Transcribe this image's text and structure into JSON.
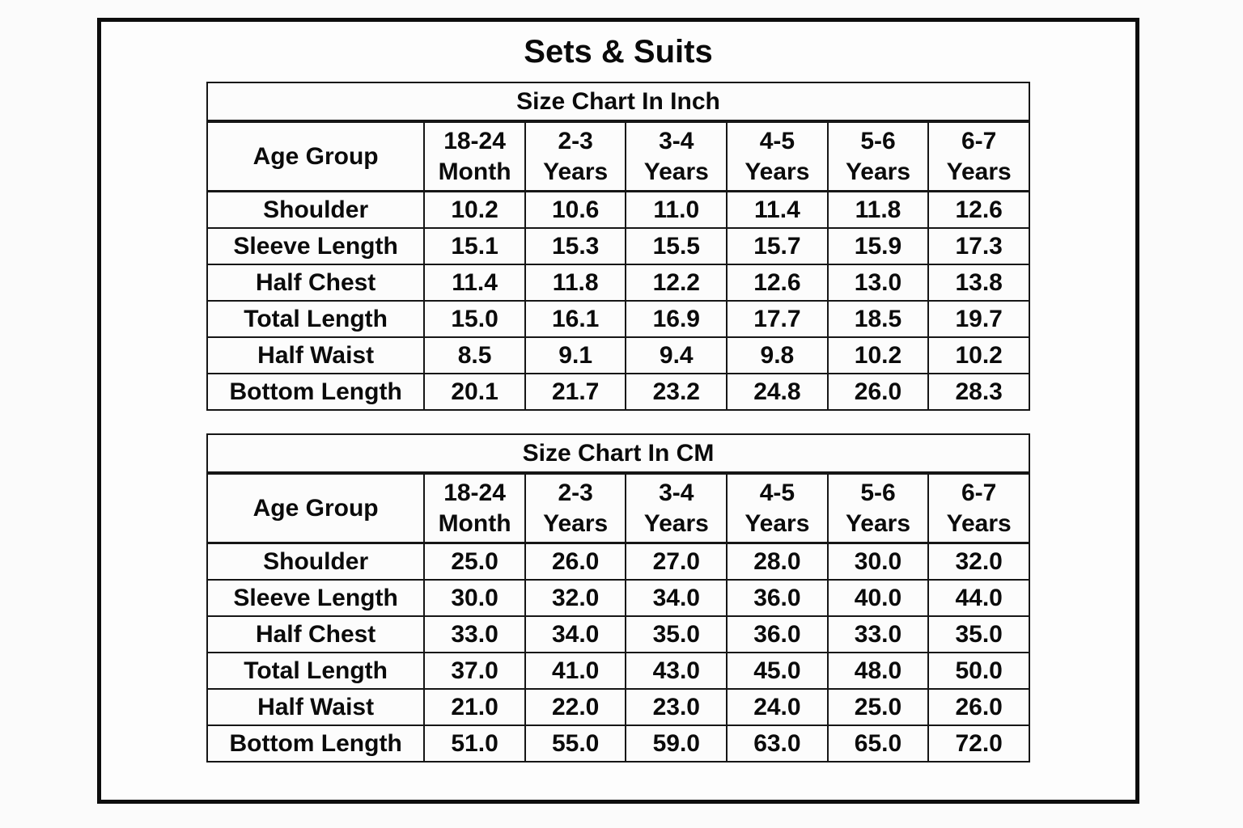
{
  "page": {
    "title": "Sets & Suits"
  },
  "colors": {
    "border": "#161616",
    "text": "#0b0b0b",
    "background": "#fbfbfb",
    "frame_border": "#0d0d0d"
  },
  "tables": [
    {
      "title": "Size Chart In Inch",
      "header_label": "Age Group",
      "columns": [
        {
          "line1": "18-24",
          "line2": "Month"
        },
        {
          "line1": "2-3",
          "line2": "Years"
        },
        {
          "line1": "3-4",
          "line2": "Years"
        },
        {
          "line1": "4-5",
          "line2": "Years"
        },
        {
          "line1": "5-6",
          "line2": "Years"
        },
        {
          "line1": "6-7",
          "line2": "Years"
        }
      ],
      "rows": [
        {
          "label": "Shoulder",
          "values": [
            "10.2",
            "10.6",
            "11.0",
            "11.4",
            "11.8",
            "12.6"
          ]
        },
        {
          "label": "Sleeve Length",
          "values": [
            "15.1",
            "15.3",
            "15.5",
            "15.7",
            "15.9",
            "17.3"
          ]
        },
        {
          "label": "Half Chest",
          "values": [
            "11.4",
            "11.8",
            "12.2",
            "12.6",
            "13.0",
            "13.8"
          ]
        },
        {
          "label": "Total Length",
          "values": [
            "15.0",
            "16.1",
            "16.9",
            "17.7",
            "18.5",
            "19.7"
          ]
        },
        {
          "label": "Half Waist",
          "values": [
            "8.5",
            "9.1",
            "9.4",
            "9.8",
            "10.2",
            "10.2"
          ]
        },
        {
          "label": "Bottom Length",
          "values": [
            "20.1",
            "21.7",
            "23.2",
            "24.8",
            "26.0",
            "28.3"
          ]
        }
      ]
    },
    {
      "title": "Size Chart In CM",
      "header_label": "Age Group",
      "columns": [
        {
          "line1": "18-24",
          "line2": "Month"
        },
        {
          "line1": "2-3",
          "line2": "Years"
        },
        {
          "line1": "3-4",
          "line2": "Years"
        },
        {
          "line1": "4-5",
          "line2": "Years"
        },
        {
          "line1": "5-6",
          "line2": "Years"
        },
        {
          "line1": "6-7",
          "line2": "Years"
        }
      ],
      "rows": [
        {
          "label": "Shoulder",
          "values": [
            "25.0",
            "26.0",
            "27.0",
            "28.0",
            "30.0",
            "32.0"
          ]
        },
        {
          "label": "Sleeve Length",
          "values": [
            "30.0",
            "32.0",
            "34.0",
            "36.0",
            "40.0",
            "44.0"
          ]
        },
        {
          "label": "Half Chest",
          "values": [
            "33.0",
            "34.0",
            "35.0",
            "36.0",
            "33.0",
            "35.0"
          ]
        },
        {
          "label": "Total Length",
          "values": [
            "37.0",
            "41.0",
            "43.0",
            "45.0",
            "48.0",
            "50.0"
          ]
        },
        {
          "label": "Half Waist",
          "values": [
            "21.0",
            "22.0",
            "23.0",
            "24.0",
            "25.0",
            "26.0"
          ]
        },
        {
          "label": "Bottom Length",
          "values": [
            "51.0",
            "55.0",
            "59.0",
            "63.0",
            "65.0",
            "72.0"
          ]
        }
      ]
    }
  ],
  "chart_data": [
    {
      "type": "table",
      "title": "Size Chart In Inch",
      "unit": "inch",
      "columns": [
        "Age Group",
        "18-24 Month",
        "2-3 Years",
        "3-4 Years",
        "4-5 Years",
        "5-6 Years",
        "6-7 Years"
      ],
      "rows": [
        [
          "Shoulder",
          10.2,
          10.6,
          11.0,
          11.4,
          11.8,
          12.6
        ],
        [
          "Sleeve Length",
          15.1,
          15.3,
          15.5,
          15.7,
          15.9,
          17.3
        ],
        [
          "Half Chest",
          11.4,
          11.8,
          12.2,
          12.6,
          13.0,
          13.8
        ],
        [
          "Total Length",
          15.0,
          16.1,
          16.9,
          17.7,
          18.5,
          19.7
        ],
        [
          "Half Waist",
          8.5,
          9.1,
          9.4,
          9.8,
          10.2,
          10.2
        ],
        [
          "Bottom Length",
          20.1,
          21.7,
          23.2,
          24.8,
          26.0,
          28.3
        ]
      ]
    },
    {
      "type": "table",
      "title": "Size Chart In CM",
      "unit": "cm",
      "columns": [
        "Age Group",
        "18-24 Month",
        "2-3 Years",
        "3-4 Years",
        "4-5 Years",
        "5-6 Years",
        "6-7 Years"
      ],
      "rows": [
        [
          "Shoulder",
          25.0,
          26.0,
          27.0,
          28.0,
          30.0,
          32.0
        ],
        [
          "Sleeve Length",
          30.0,
          32.0,
          34.0,
          36.0,
          40.0,
          44.0
        ],
        [
          "Half Chest",
          33.0,
          34.0,
          35.0,
          36.0,
          33.0,
          35.0
        ],
        [
          "Total Length",
          37.0,
          41.0,
          43.0,
          45.0,
          48.0,
          50.0
        ],
        [
          "Half Waist",
          21.0,
          22.0,
          23.0,
          24.0,
          25.0,
          26.0
        ],
        [
          "Bottom Length",
          51.0,
          55.0,
          59.0,
          63.0,
          65.0,
          72.0
        ]
      ]
    }
  ]
}
